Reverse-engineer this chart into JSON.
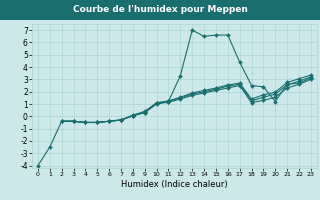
{
  "title": "Courbe de l'humidex pour Meppen",
  "xlabel": "Humidex (Indice chaleur)",
  "xlim": [
    -0.5,
    23.5
  ],
  "ylim": [
    -4.2,
    7.5
  ],
  "xticks": [
    0,
    1,
    2,
    3,
    4,
    5,
    6,
    7,
    8,
    9,
    10,
    11,
    12,
    13,
    14,
    15,
    16,
    17,
    18,
    19,
    20,
    21,
    22,
    23
  ],
  "yticks": [
    -4,
    -3,
    -2,
    -1,
    0,
    1,
    2,
    3,
    4,
    5,
    6,
    7
  ],
  "bg_color": "#cce8e8",
  "grid_color": "#aad4d4",
  "line_color": "#1a6e6e",
  "title_bg": "#1a6e6e",
  "title_fg": "#ffffff",
  "lines": [
    {
      "x": [
        0,
        1,
        2,
        3,
        4,
        5,
        6,
        7,
        8,
        9,
        10,
        11,
        12,
        13,
        14,
        15,
        16,
        17,
        18,
        19,
        20,
        21,
        22,
        23
      ],
      "y": [
        -4.0,
        -2.5,
        -0.4,
        -0.4,
        -0.5,
        -0.5,
        -0.4,
        -0.3,
        0.05,
        0.3,
        1.1,
        1.2,
        3.3,
        7.0,
        6.5,
        6.6,
        6.6,
        4.4,
        2.5,
        2.4,
        1.2,
        2.6,
        2.7,
        3.1
      ],
      "marker": true
    },
    {
      "x": [
        2,
        3,
        4,
        5,
        6,
        7,
        8,
        9,
        10,
        11,
        12,
        13,
        14,
        15,
        16,
        17,
        18,
        19,
        20,
        21,
        22,
        23
      ],
      "y": [
        -0.4,
        -0.4,
        -0.5,
        -0.5,
        -0.4,
        -0.3,
        0.05,
        0.3,
        1.0,
        1.15,
        1.4,
        1.7,
        1.9,
        2.1,
        2.3,
        2.5,
        1.1,
        1.3,
        1.55,
        2.3,
        2.6,
        3.0
      ],
      "marker": true
    },
    {
      "x": [
        2,
        3,
        4,
        5,
        6,
        7,
        8,
        9,
        10,
        11,
        12,
        13,
        14,
        15,
        16,
        17,
        18,
        19,
        20,
        21,
        22,
        23
      ],
      "y": [
        -0.4,
        -0.4,
        -0.5,
        -0.5,
        -0.4,
        -0.3,
        0.05,
        0.35,
        1.05,
        1.2,
        1.5,
        1.8,
        2.0,
        2.2,
        2.45,
        2.6,
        1.25,
        1.55,
        1.8,
        2.55,
        2.85,
        3.2
      ],
      "marker": true
    },
    {
      "x": [
        2,
        3,
        4,
        5,
        6,
        7,
        8,
        9,
        10,
        11,
        12,
        13,
        14,
        15,
        16,
        17,
        18,
        19,
        20,
        21,
        22,
        23
      ],
      "y": [
        -0.4,
        -0.4,
        -0.5,
        -0.5,
        -0.4,
        -0.3,
        0.1,
        0.4,
        1.1,
        1.25,
        1.55,
        1.9,
        2.1,
        2.3,
        2.55,
        2.7,
        1.4,
        1.75,
        1.95,
        2.75,
        3.05,
        3.35
      ],
      "marker": true
    }
  ]
}
